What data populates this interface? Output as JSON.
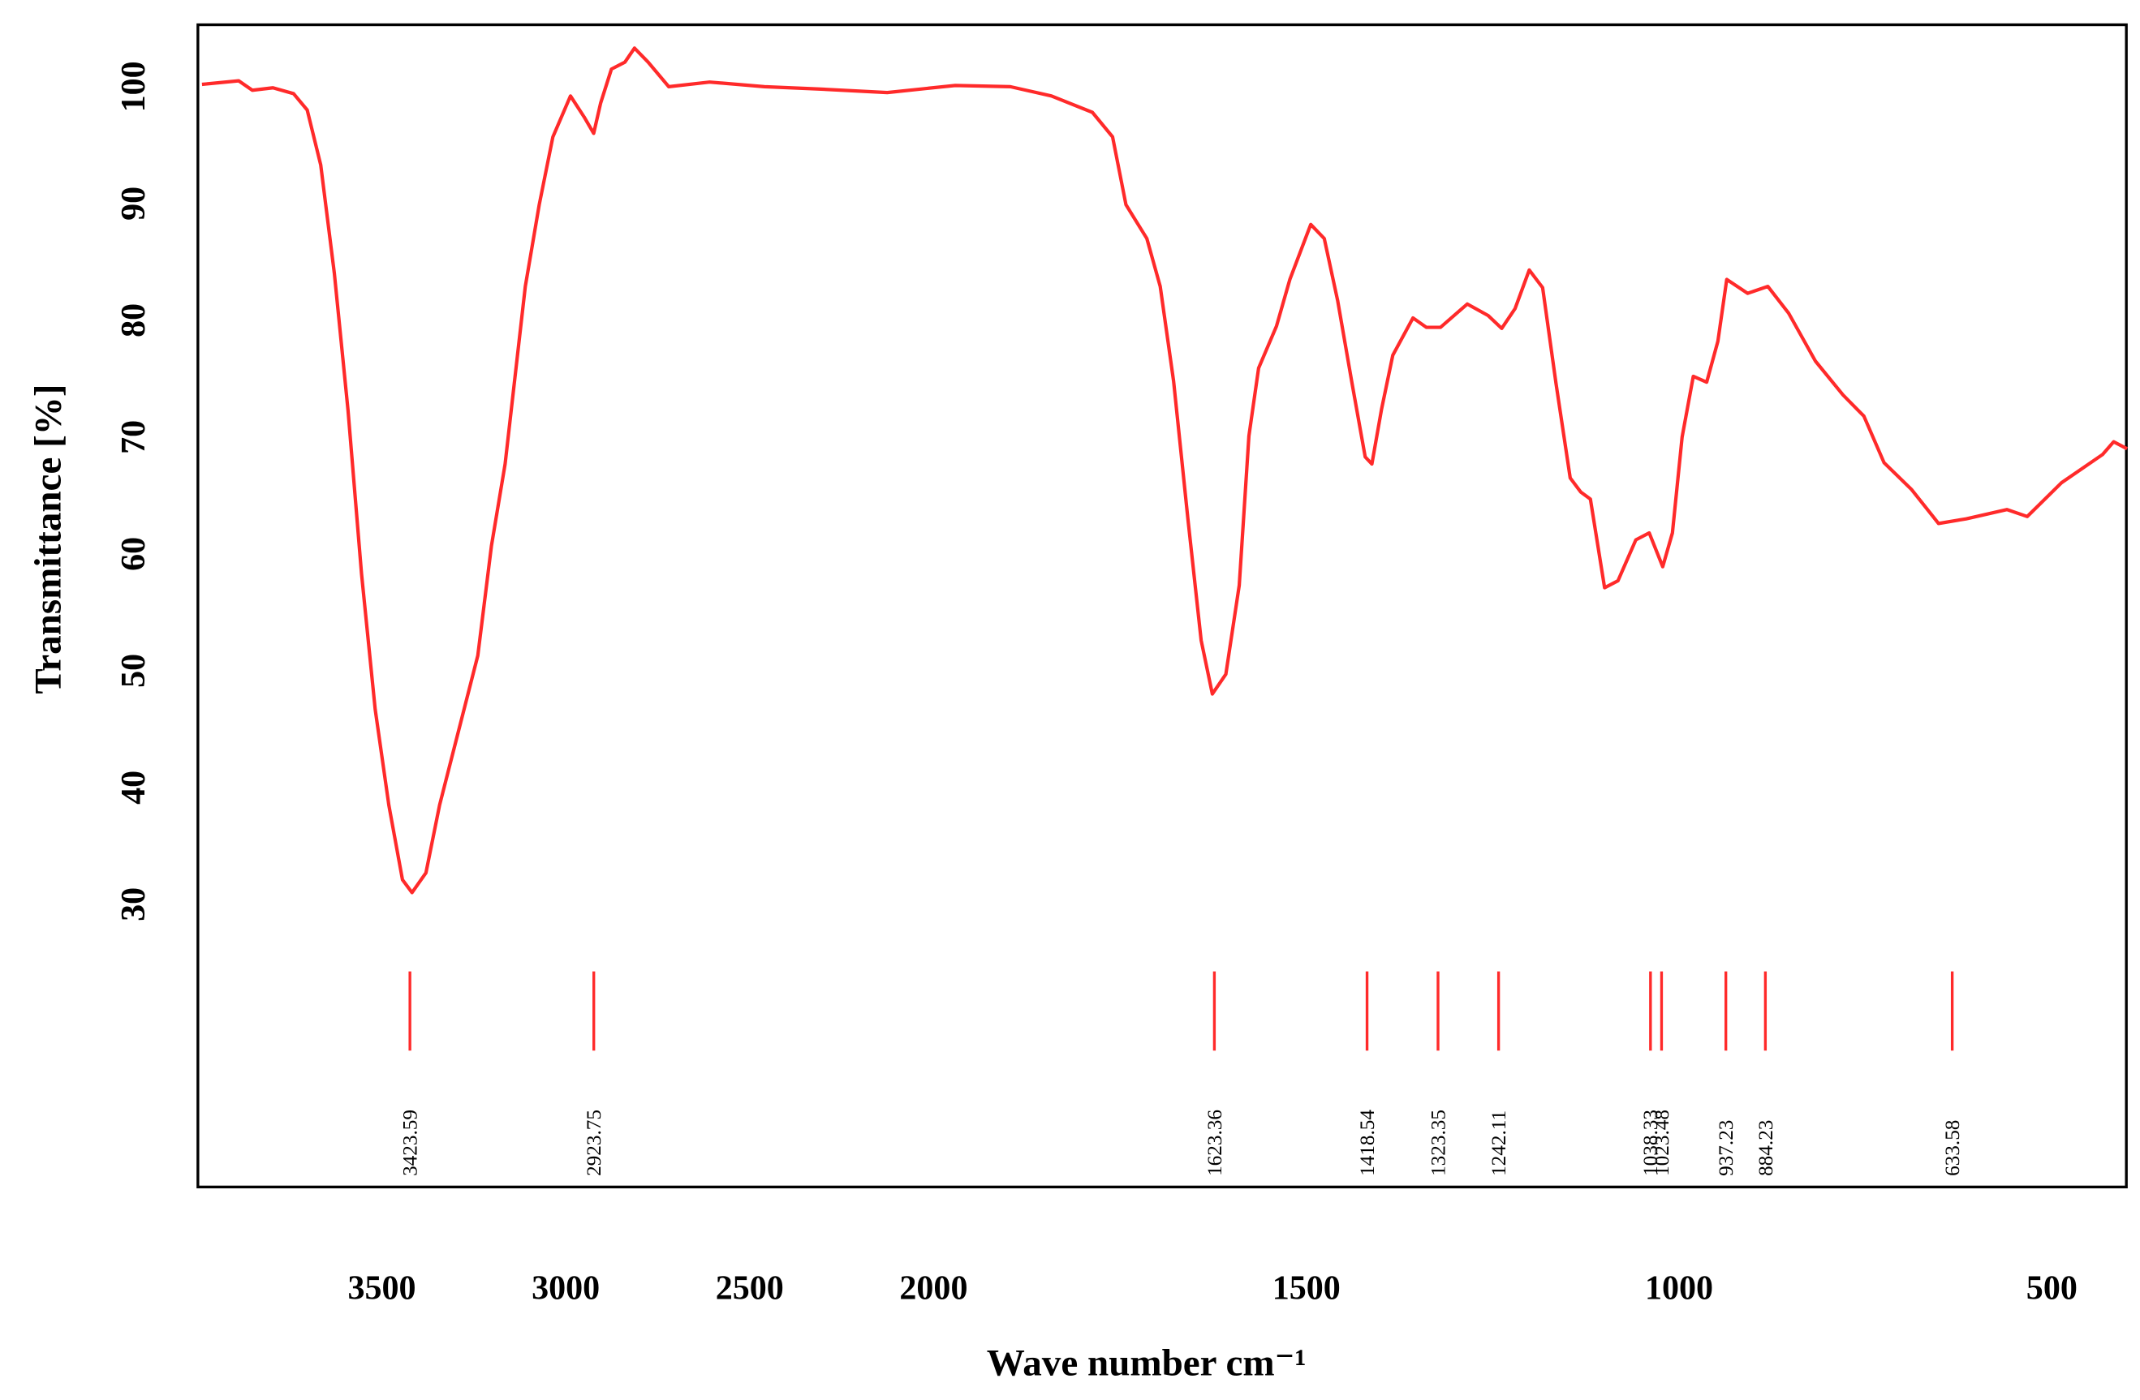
{
  "chart_data": {
    "type": "line",
    "xlabel": "Wave number cm⁻¹",
    "ylabel": "Transmittance [%]",
    "x": [
      3989,
      3889,
      3852,
      3796,
      3740,
      3703,
      3666,
      3629,
      3592,
      3555,
      3518,
      3481,
      3444,
      3418,
      3380,
      3343,
      3295,
      3239,
      3202,
      3165,
      3110,
      3072,
      3035,
      2987,
      2950,
      2924,
      2905,
      2876,
      2839,
      2813,
      2776,
      2720,
      2609,
      2460,
      2312,
      2126,
      1971,
      1897,
      1842,
      1787,
      1760,
      1742,
      1714,
      1696,
      1678,
      1659,
      1641,
      1626,
      1608,
      1590,
      1577,
      1564,
      1540,
      1522,
      1494,
      1476,
      1458,
      1439,
      1421,
      1412,
      1399,
      1384,
      1357,
      1339,
      1320,
      1284,
      1256,
      1238,
      1220,
      1201,
      1183,
      1165,
      1146,
      1132,
      1119,
      1100,
      1082,
      1058,
      1040,
      1022,
      1009,
      996,
      981,
      963,
      948,
      936,
      908,
      881,
      853,
      817,
      780,
      752,
      725,
      688,
      652,
      615,
      560,
      533,
      487,
      432,
      417,
      399
    ],
    "series": [
      {
        "color": "#ff2a2a",
        "values": [
          100.2,
          100.5,
          99.7,
          99.9,
          99.4,
          98.0,
          93.3,
          84.0,
          72.3,
          58.3,
          46.7,
          38.5,
          32.1,
          31.0,
          32.7,
          38.5,
          44.4,
          51.3,
          60.7,
          67.7,
          82.9,
          89.9,
          95.7,
          99.2,
          97.4,
          96.0,
          98.6,
          101.5,
          102.1,
          103.3,
          102.1,
          100.0,
          100.4,
          100.0,
          99.8,
          99.5,
          100.1,
          100.0,
          99.2,
          97.8,
          95.7,
          89.9,
          87.0,
          82.9,
          74.8,
          63.1,
          52.6,
          48.0,
          49.7,
          57.3,
          70.1,
          75.9,
          79.5,
          83.5,
          88.2,
          87.0,
          81.7,
          74.7,
          68.3,
          67.7,
          72.4,
          77.0,
          80.2,
          79.4,
          79.4,
          81.4,
          80.4,
          79.3,
          81.0,
          84.3,
          82.8,
          74.6,
          66.5,
          65.3,
          64.7,
          57.1,
          57.7,
          61.2,
          61.8,
          58.9,
          61.8,
          70.0,
          75.2,
          74.7,
          78.2,
          83.5,
          82.3,
          82.9,
          80.6,
          76.5,
          73.6,
          71.8,
          67.8,
          65.5,
          62.6,
          63.0,
          63.8,
          63.2,
          66.1,
          68.5,
          69.6,
          69.0
        ]
      }
    ],
    "peaks": [
      3423.59,
      2923.75,
      1623.36,
      1418.54,
      1323.35,
      1242.11,
      1038.33,
      1023.48,
      937.23,
      884.23,
      633.58
    ],
    "xlim": [
      4000,
      400
    ],
    "x_scale_break": 2000,
    "xticks": [
      3500,
      3000,
      2500,
      2000,
      1500,
      1000,
      500
    ],
    "ylim": [
      5.8,
      105.3
    ],
    "yticks": [
      30,
      40,
      50,
      60,
      70,
      80,
      90,
      100
    ]
  }
}
